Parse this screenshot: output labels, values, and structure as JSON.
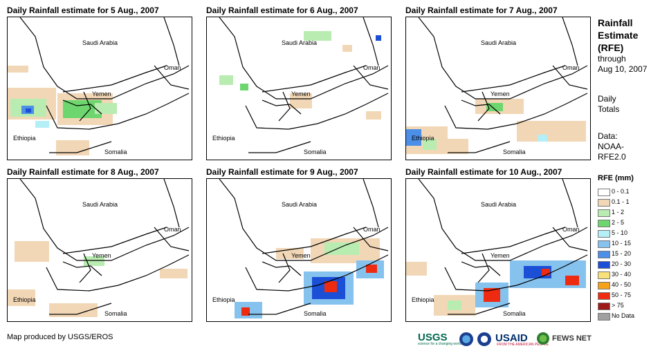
{
  "panels": [
    {
      "title": "Daily Rainfall estimate for 5 Aug., 2007"
    },
    {
      "title": "Daily Rainfall estimate for 6 Aug., 2007"
    },
    {
      "title": "Daily Rainfall estimate for 7 Aug., 2007"
    },
    {
      "title": "Daily Rainfall estimate for 8 Aug., 2007"
    },
    {
      "title": "Daily Rainfall estimate for 9 Aug., 2007"
    },
    {
      "title": "Daily Rainfall estimate for 10 Aug., 2007"
    }
  ],
  "map_labels": {
    "saudi": "Saudi Arabia",
    "oman": "Oman",
    "yemen": "Yemen",
    "ethiopia": "Ethiopia",
    "somalia": "Somalia"
  },
  "sidebar": {
    "title_line1": "Rainfall",
    "title_line2": "Estimate",
    "title_line3": "(RFE)",
    "through": "through",
    "date": "Aug 10, 2007",
    "daily": "Daily",
    "totals": "Totals",
    "data_label": "Data:",
    "data_src1": "NOAA-",
    "data_src2": "RFE2.0"
  },
  "legend": {
    "title": "RFE (mm)",
    "items": [
      {
        "label": "0 - 0.1",
        "color": "#ffffff"
      },
      {
        "label": "0.1 - 1",
        "color": "#f2d7b6"
      },
      {
        "label": "1 - 2",
        "color": "#b8ecb0"
      },
      {
        "label": "2 - 5",
        "color": "#6ed66e"
      },
      {
        "label": "5 - 10",
        "color": "#b4eef6"
      },
      {
        "label": "10 - 15",
        "color": "#86c2ee"
      },
      {
        "label": "15 - 20",
        "color": "#4c8fe6"
      },
      {
        "label": "20 - 30",
        "color": "#1a4fd6"
      },
      {
        "label": "30 - 40",
        "color": "#f8e07a"
      },
      {
        "label": "40 - 50",
        "color": "#f5a21b"
      },
      {
        "label": "50 - 75",
        "color": "#ee2b10"
      },
      {
        "label": "> 75",
        "color": "#9e1a1a"
      },
      {
        "label": "No Data",
        "color": "#a0a0a0"
      }
    ]
  },
  "credit": "Map produced by USGS/EROS",
  "logos": {
    "usgs": "USGS",
    "usgs_sub": "science for a changing world",
    "usaid": "USAID",
    "usaid_sub": "FROM THE AMERICAN PEOPLE",
    "fews": "FEWS NET"
  }
}
